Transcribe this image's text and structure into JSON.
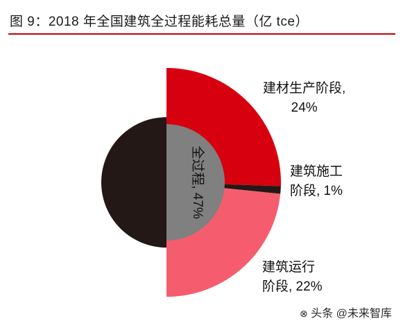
{
  "header": {
    "title": "图 9：2018 年全国建筑全过程能耗总量（亿 tce）"
  },
  "chart_data": {
    "type": "pie",
    "slices": [
      {
        "label": "建材生产阶段",
        "line1": "建材生产阶段,",
        "line2": "24%",
        "value": 24,
        "color": "#d7000f"
      },
      {
        "label": "建筑施工阶段",
        "line1": "建筑施工",
        "line2": "阶段, 1%",
        "value": 1,
        "color": "#231815"
      },
      {
        "label": "建筑运行阶段",
        "line1": "建筑运行",
        "line2": "阶段, 22%",
        "value": 22,
        "color": "#f55d6e"
      }
    ],
    "total": {
      "label": "全过程, 47%",
      "value": 47,
      "color": "#231815",
      "inner_color": "#808080"
    }
  },
  "watermark": {
    "text": "头条 @未来智库"
  }
}
